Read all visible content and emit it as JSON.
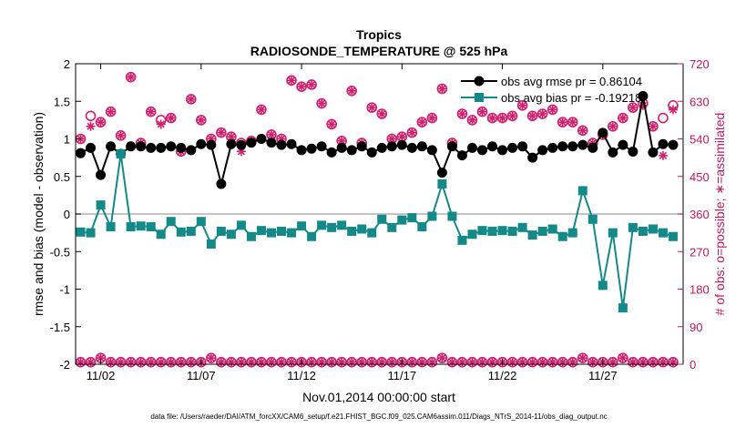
{
  "chart_data": {
    "type": "line",
    "title": "Tropics",
    "subtitle": "RADIOSONDE_TEMPERATURE @ 525 hPa",
    "xlabel": "Nov.01,2014 00:00:00 start",
    "ylabel_left": "rmse and bias (model - observation)",
    "ylabel_right": "# of obs: o=possible; ∗=assimilated",
    "footnote": "data file: /Users/raeder/DAI/ATM_forcXX/CAM6_setup/f.e21.FHIST_BGC.f09_025.CAM6assim.011/Diags_NTrS_2014-11/obs_diag_output.nc",
    "xlim": [
      0.75,
      31.0
    ],
    "ylim_left": [
      -2,
      2
    ],
    "ylim_right": [
      0,
      720
    ],
    "x_ticks": [
      2,
      7,
      12,
      17,
      22,
      27
    ],
    "x_tick_labels": [
      "11/02",
      "11/07",
      "11/12",
      "11/17",
      "11/22",
      "11/27"
    ],
    "y_ticks_left": [
      -2,
      -1.5,
      -1,
      -0.5,
      0,
      0.5,
      1,
      1.5,
      2
    ],
    "y_tick_labels_left": [
      "-2",
      "-1.5",
      "-1",
      "-0.5",
      "0",
      "0.5",
      "1",
      "1.5",
      "2"
    ],
    "y_ticks_right": [
      0,
      90,
      180,
      270,
      360,
      450,
      540,
      630,
      720
    ],
    "y_tick_labels_right": [
      "0",
      "90",
      "180",
      "270",
      "360",
      "450",
      "540",
      "630",
      "720"
    ],
    "legend_position": "top-right",
    "legend": [
      {
        "label": "obs avg rmse pr = 0.86104",
        "color": "#000000",
        "marker": "circle"
      },
      {
        "label": "obs avg bias pr = -0.19218",
        "color": "#138a87",
        "marker": "square"
      }
    ],
    "x": [
      1.0,
      1.5,
      2.0,
      2.5,
      3.0,
      3.5,
      4.0,
      4.5,
      5.0,
      5.5,
      6.0,
      6.5,
      7.0,
      7.5,
      8.0,
      8.5,
      9.0,
      9.5,
      10.0,
      10.5,
      11.0,
      11.5,
      12.0,
      12.5,
      13.0,
      13.5,
      14.0,
      14.5,
      15.0,
      15.5,
      16.0,
      16.5,
      17.0,
      17.5,
      18.0,
      18.5,
      19.0,
      19.5,
      20.0,
      20.5,
      21.0,
      21.5,
      22.0,
      22.5,
      23.0,
      23.5,
      24.0,
      24.5,
      25.0,
      25.5,
      26.0,
      26.5,
      27.0,
      27.5,
      28.0,
      28.5,
      29.0,
      29.5,
      30.0,
      30.5
    ],
    "series": [
      {
        "name": "obs avg rmse pr",
        "color": "#000000",
        "values": [
          0.81,
          0.88,
          0.52,
          0.9,
          0.8,
          0.9,
          0.9,
          0.88,
          0.88,
          0.9,
          0.88,
          0.85,
          0.93,
          0.92,
          0.4,
          0.93,
          0.92,
          0.95,
          1.0,
          0.95,
          0.92,
          0.93,
          0.85,
          0.87,
          0.9,
          0.82,
          0.88,
          0.85,
          0.9,
          0.82,
          0.88,
          0.9,
          0.92,
          0.88,
          0.9,
          0.85,
          0.55,
          0.9,
          0.78,
          0.88,
          0.85,
          0.9,
          0.85,
          0.88,
          0.9,
          0.75,
          0.85,
          0.88,
          0.9,
          0.9,
          0.92,
          0.88,
          1.08,
          0.82,
          0.92,
          0.83,
          1.57,
          0.82,
          0.93,
          0.92
        ]
      },
      {
        "name": "obs avg bias pr",
        "color": "#138a87",
        "values": [
          -0.24,
          -0.25,
          0.12,
          -0.17,
          0.8,
          -0.17,
          -0.16,
          -0.17,
          -0.27,
          -0.1,
          -0.24,
          -0.23,
          -0.1,
          -0.4,
          -0.23,
          -0.27,
          -0.15,
          -0.3,
          -0.22,
          -0.25,
          -0.23,
          -0.25,
          -0.16,
          -0.3,
          -0.15,
          -0.18,
          -0.15,
          -0.23,
          -0.2,
          -0.25,
          -0.07,
          -0.18,
          -0.08,
          -0.05,
          -0.17,
          -0.03,
          0.4,
          -0.03,
          -0.35,
          -0.27,
          -0.22,
          -0.23,
          -0.22,
          -0.23,
          -0.18,
          -0.28,
          -0.23,
          -0.2,
          -0.3,
          -0.25,
          0.31,
          -0.07,
          -0.95,
          -0.25,
          -1.25,
          -0.18,
          -0.23,
          -0.2,
          -0.25,
          -0.3
        ]
      },
      {
        "name": "# of obs possible",
        "axis": "right",
        "color": "#d21f6d",
        "values": [
          540,
          595,
          580,
          605,
          548,
          688,
          530,
          605,
          585,
          590,
          510,
          635,
          585,
          540,
          555,
          545,
          530,
          535,
          610,
          550,
          540,
          680,
          665,
          670,
          625,
          575,
          535,
          655,
          530,
          615,
          600,
          540,
          545,
          555,
          580,
          590,
          660,
          530,
          600,
          585,
          605,
          590,
          590,
          595,
          620,
          595,
          600,
          610,
          580,
          580,
          560,
          530,
          550,
          570,
          590,
          615,
          625,
          570,
          590,
          620
        ]
      },
      {
        "name": "# of obs assimilated",
        "axis": "right",
        "color": "#d21f6d",
        "values": [
          540,
          570,
          580,
          605,
          548,
          688,
          530,
          605,
          575,
          590,
          510,
          635,
          585,
          540,
          555,
          545,
          510,
          535,
          610,
          550,
          540,
          680,
          665,
          670,
          625,
          575,
          535,
          655,
          530,
          615,
          600,
          540,
          545,
          555,
          580,
          590,
          660,
          530,
          600,
          585,
          605,
          590,
          590,
          595,
          620,
          595,
          600,
          610,
          580,
          580,
          560,
          530,
          550,
          570,
          590,
          615,
          620,
          570,
          500,
          610
        ]
      }
    ],
    "bottom_counts": {
      "possible": [
        5,
        5,
        15,
        5,
        5,
        5,
        5,
        5,
        5,
        5,
        5,
        5,
        5,
        15,
        5,
        5,
        5,
        5,
        5,
        5,
        5,
        5,
        5,
        5,
        5,
        5,
        5,
        5,
        5,
        5,
        5,
        5,
        5,
        5,
        5,
        5,
        15,
        5,
        5,
        5,
        5,
        5,
        5,
        5,
        5,
        5,
        5,
        5,
        5,
        5,
        15,
        5,
        5,
        5,
        15,
        5,
        5,
        5,
        5,
        5
      ],
      "assimilated": [
        5,
        5,
        15,
        5,
        5,
        5,
        5,
        5,
        5,
        5,
        5,
        5,
        5,
        15,
        5,
        5,
        5,
        5,
        5,
        5,
        5,
        5,
        5,
        5,
        5,
        5,
        5,
        5,
        5,
        5,
        5,
        5,
        5,
        5,
        5,
        5,
        15,
        5,
        5,
        5,
        5,
        5,
        5,
        5,
        5,
        5,
        5,
        5,
        5,
        5,
        15,
        5,
        5,
        5,
        15,
        5,
        5,
        5,
        5,
        5
      ]
    },
    "zero_line": true,
    "grid": false
  }
}
